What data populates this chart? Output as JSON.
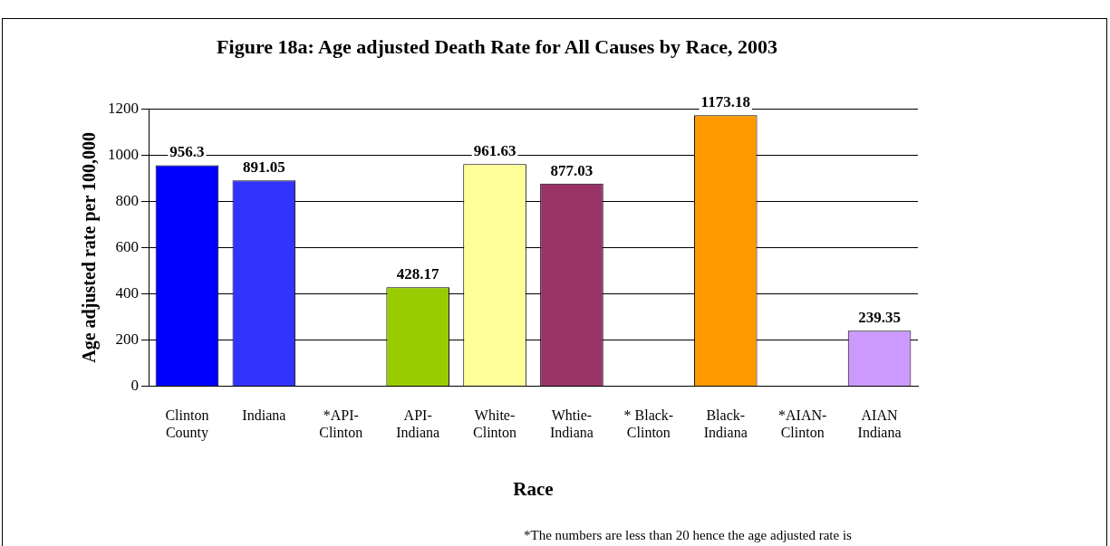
{
  "chart_data": {
    "type": "bar",
    "title": "Figure 18a: Age adjusted Death Rate for All Causes by Race, 2003",
    "xlabel": "Race",
    "ylabel": "Age adjusted rate per 100,000",
    "categories": [
      "Clinton County",
      "Indiana",
      "*API-Clinton",
      "API-Indiana",
      "White-Clinton",
      "Whtie-Indiana",
      "* Black-Clinton",
      "Black-Indiana",
      "*AIAN-Clinton",
      "AIAN Indiana"
    ],
    "values": [
      956.3,
      891.05,
      null,
      428.17,
      961.63,
      877.03,
      null,
      1173.18,
      null,
      239.35
    ],
    "colors": [
      "#0000ff",
      "#3333ff",
      null,
      "#99cc00",
      "#ffff99",
      "#993366",
      null,
      "#ff9900",
      null,
      "#cc99ff"
    ],
    "ylim": [
      0,
      1200
    ],
    "yticks": [
      0,
      200,
      400,
      600,
      800,
      1000,
      1200
    ],
    "grid": "y",
    "legend": false,
    "data_labels": true,
    "annotations": [
      "*The numbers are less than 20 hence the age adjusted rate is"
    ]
  }
}
